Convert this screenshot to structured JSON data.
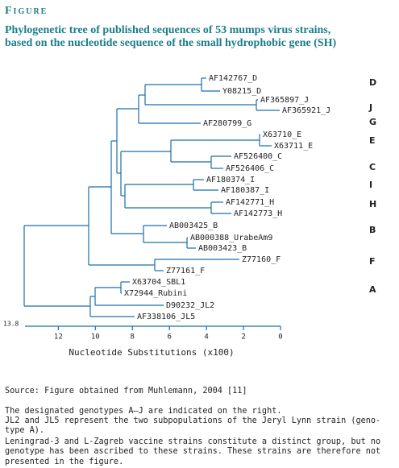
{
  "figure_label": "Figure",
  "title": [
    "Phylogenetic tree of published sequences of 53 mumps virus strains,",
    "based on the nucleotide sequence of the small hydrophobic gene (SH)"
  ],
  "tree": {
    "leaves": [
      "AF142767_D",
      "Y08215_D",
      "AF365897_J",
      "AF365921_J",
      "AF280799_G",
      "X63710_E",
      "X63711_E",
      "AF526400_C",
      "AF526406_C",
      "AF180374_I",
      "AF180387_I",
      "AF142771_H",
      "AF142773_H",
      "AB003425_B",
      "AB000388_UrabeAm9",
      "AB003423_B",
      "Z77160_F",
      "Z77161_F",
      "X63704_SBL1",
      "X72944_Rubini",
      "D90232_JL2",
      "AF338106_JL5"
    ],
    "genotypes": [
      "D",
      "J",
      "G",
      "E",
      "C",
      "I",
      "H",
      "B",
      "F",
      "A"
    ],
    "axis": {
      "start": 13.8,
      "ticks": [
        12,
        10,
        8,
        6,
        4,
        2,
        0
      ],
      "title": "Nucleotide Substitutions (x100)"
    }
  },
  "source": "Source: Figure obtained from Muhlemann, 2004 [11]",
  "notes": [
    "The designated genotypes A–J are indicated on the right.",
    "JL2 and JL5 represent the two subpopulations of the Jeryl Lynn strain (geno-",
    "type A).",
    "Leningrad-3 and L-Zagreb vaccine strains constitute a distinct group, but no",
    "genotype has been ascribed to these strains.  These strains are therefore not",
    "presented in the figure."
  ]
}
